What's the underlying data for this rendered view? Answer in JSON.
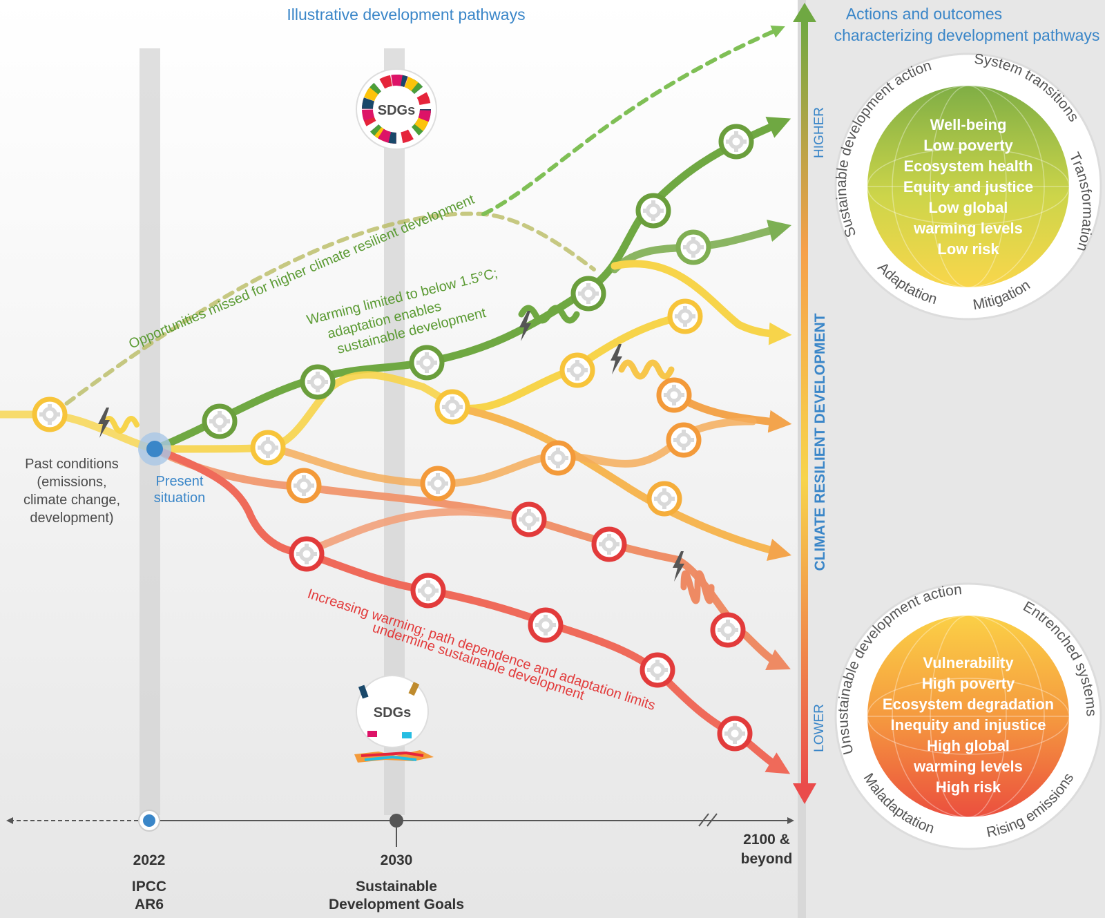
{
  "header": {
    "left_title": "Illustrative development pathways",
    "right_title_line1": "Actions and outcomes",
    "right_title_line2": "characterizing development pathways"
  },
  "pathway_labels": {
    "opportunities": "Opportunities missed for higher climate resilient development",
    "warming_limited_l1": "Warming limited to below 1.5°C;",
    "warming_limited_l2": "adaptation enables",
    "warming_limited_l3": "sustainable development",
    "increasing_l1": "Increasing warming; path dependence and adaptation limits",
    "increasing_l2": "undermine sustainable development"
  },
  "left_notes": {
    "past_l1": "Past conditions",
    "past_l2": "(emissions,",
    "past_l3": "climate change,",
    "past_l4": "development)",
    "present_l1": "Present",
    "present_l2": "situation"
  },
  "sdg_badge": "SDGs",
  "timeline": {
    "y2022": "2022",
    "y2022_sub1": "IPCC",
    "y2022_sub2": "AR6",
    "y2030": "2030",
    "y2030_sub1": "Sustainable",
    "y2030_sub2": "Development Goals",
    "y2100_l1": "2100 &",
    "y2100_l2": "beyond"
  },
  "axis": {
    "label": "CLIMATE RESILIENT DEVELOPMENT",
    "higher": "HIGHER",
    "lower": "LOWER"
  },
  "upper_circle": {
    "ring": [
      "Sustainable development action",
      "System transitions",
      "Transformation",
      "Mitigation",
      "Adaptation"
    ],
    "outcomes": [
      "Well-being",
      "Low poverty",
      "Ecosystem health",
      "Equity and justice",
      "Low global",
      "warming levels",
      "Low risk"
    ]
  },
  "lower_circle": {
    "ring": [
      "Unsustainable development action",
      "Entrenched systems",
      "Rising emissions",
      "Maladaptation"
    ],
    "outcomes": [
      "Vulnerability",
      "High poverty",
      "Ecosystem degradation",
      "Inequity and injustice",
      "High global",
      "warming levels",
      "High risk"
    ]
  },
  "colors": {
    "green": "#6fa842",
    "light_green": "#9cc063",
    "yellow": "#f7d44a",
    "orange": "#f3a44c",
    "red_orange": "#ee8a63",
    "red": "#e23b3b",
    "blue": "#3a86c8"
  }
}
